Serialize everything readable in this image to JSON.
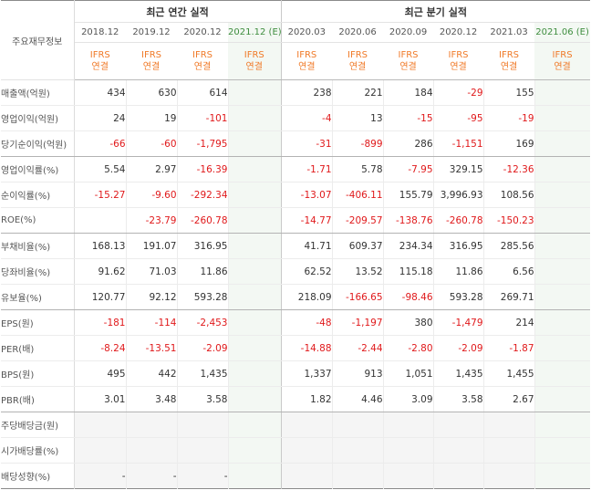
{
  "table": {
    "title": "주요재무정보",
    "groups": [
      {
        "label": "최근 연간 실적",
        "colspan": 4
      },
      {
        "label": "최근 분기 실적",
        "colspan": 6
      }
    ],
    "periods": [
      {
        "label": "2018.12",
        "estimate": false
      },
      {
        "label": "2019.12",
        "estimate": false
      },
      {
        "label": "2020.12",
        "estimate": false
      },
      {
        "label": "2021.12",
        "est_mark": "(E)",
        "estimate": true
      },
      {
        "label": "2020.03",
        "estimate": false
      },
      {
        "label": "2020.06",
        "estimate": false
      },
      {
        "label": "2020.09",
        "estimate": false
      },
      {
        "label": "2020.12",
        "estimate": false
      },
      {
        "label": "2021.03",
        "estimate": false
      },
      {
        "label": "2021.06",
        "est_mark": "(E)",
        "estimate": true
      }
    ],
    "ifrs_top": "IFRS",
    "ifrs_bottom": "연결",
    "rows": [
      {
        "label": "매출액(억원)",
        "values": [
          "434",
          "630",
          "614",
          "",
          "238",
          "221",
          "184",
          "-29",
          "155",
          ""
        ]
      },
      {
        "label": "영업이익(억원)",
        "values": [
          "24",
          "19",
          "-101",
          "",
          "-4",
          "13",
          "-15",
          "-95",
          "-19",
          ""
        ]
      },
      {
        "label": "당기순이익(억원)",
        "values": [
          "-66",
          "-60",
          "-1,795",
          "",
          "-31",
          "-899",
          "286",
          "-1,151",
          "169",
          ""
        ],
        "group_end": true
      },
      {
        "label": "영업이익률(%)",
        "values": [
          "5.54",
          "2.97",
          "-16.39",
          "",
          "-1.71",
          "5.78",
          "-7.95",
          "329.15",
          "-12.36",
          ""
        ]
      },
      {
        "label": "순이익률(%)",
        "values": [
          "-15.27",
          "-9.60",
          "-292.34",
          "",
          "-13.07",
          "-406.11",
          "155.79",
          "3,996.93",
          "108.56",
          ""
        ]
      },
      {
        "label": "ROE(%)",
        "values": [
          "",
          "-23.79",
          "-260.78",
          "",
          "-14.77",
          "-209.57",
          "-138.76",
          "-260.78",
          "-150.23",
          ""
        ],
        "group_end": true
      },
      {
        "label": "부채비율(%)",
        "values": [
          "168.13",
          "191.07",
          "316.95",
          "",
          "41.71",
          "609.37",
          "234.34",
          "316.95",
          "285.56",
          ""
        ]
      },
      {
        "label": "당좌비율(%)",
        "values": [
          "91.62",
          "71.03",
          "11.86",
          "",
          "62.52",
          "13.52",
          "115.18",
          "11.86",
          "6.56",
          ""
        ]
      },
      {
        "label": "유보율(%)",
        "values": [
          "120.77",
          "92.12",
          "593.28",
          "",
          "218.09",
          "-166.65",
          "-98.46",
          "593.28",
          "269.71",
          ""
        ],
        "group_end": true
      },
      {
        "label": "EPS(원)",
        "values": [
          "-181",
          "-114",
          "-2,453",
          "",
          "-48",
          "-1,197",
          "380",
          "-1,479",
          "214",
          ""
        ]
      },
      {
        "label": "PER(배)",
        "values": [
          "-8.24",
          "-13.51",
          "-2.09",
          "",
          "-14.88",
          "-2.44",
          "-2.80",
          "-2.09",
          "-1.87",
          ""
        ]
      },
      {
        "label": "BPS(원)",
        "values": [
          "495",
          "442",
          "1,435",
          "",
          "1,337",
          "913",
          "1,051",
          "1,435",
          "1,455",
          ""
        ]
      },
      {
        "label": "PBR(배)",
        "values": [
          "3.01",
          "3.48",
          "3.58",
          "",
          "1.82",
          "4.46",
          "3.09",
          "3.58",
          "2.67",
          ""
        ],
        "group_end": true
      },
      {
        "label": "주당배당금(원)",
        "values": [
          "",
          "",
          "",
          "",
          "",
          "",
          "",
          "",
          "",
          ""
        ],
        "blank": true
      },
      {
        "label": "시가배당률(%)",
        "values": [
          "",
          "",
          "",
          "",
          "",
          "",
          "",
          "",
          "",
          ""
        ],
        "blank": true
      },
      {
        "label": "배당성향(%)",
        "values": [
          "-",
          "-",
          "-",
          "",
          "",
          "",
          "",
          "",
          "",
          ""
        ],
        "blank": true,
        "last": true
      }
    ]
  },
  "colors": {
    "negative": "#e0191b",
    "ifrs": "#f07a28",
    "estimate_bg": "#f3f8f3",
    "estimate_text": "#3e8d3e"
  }
}
